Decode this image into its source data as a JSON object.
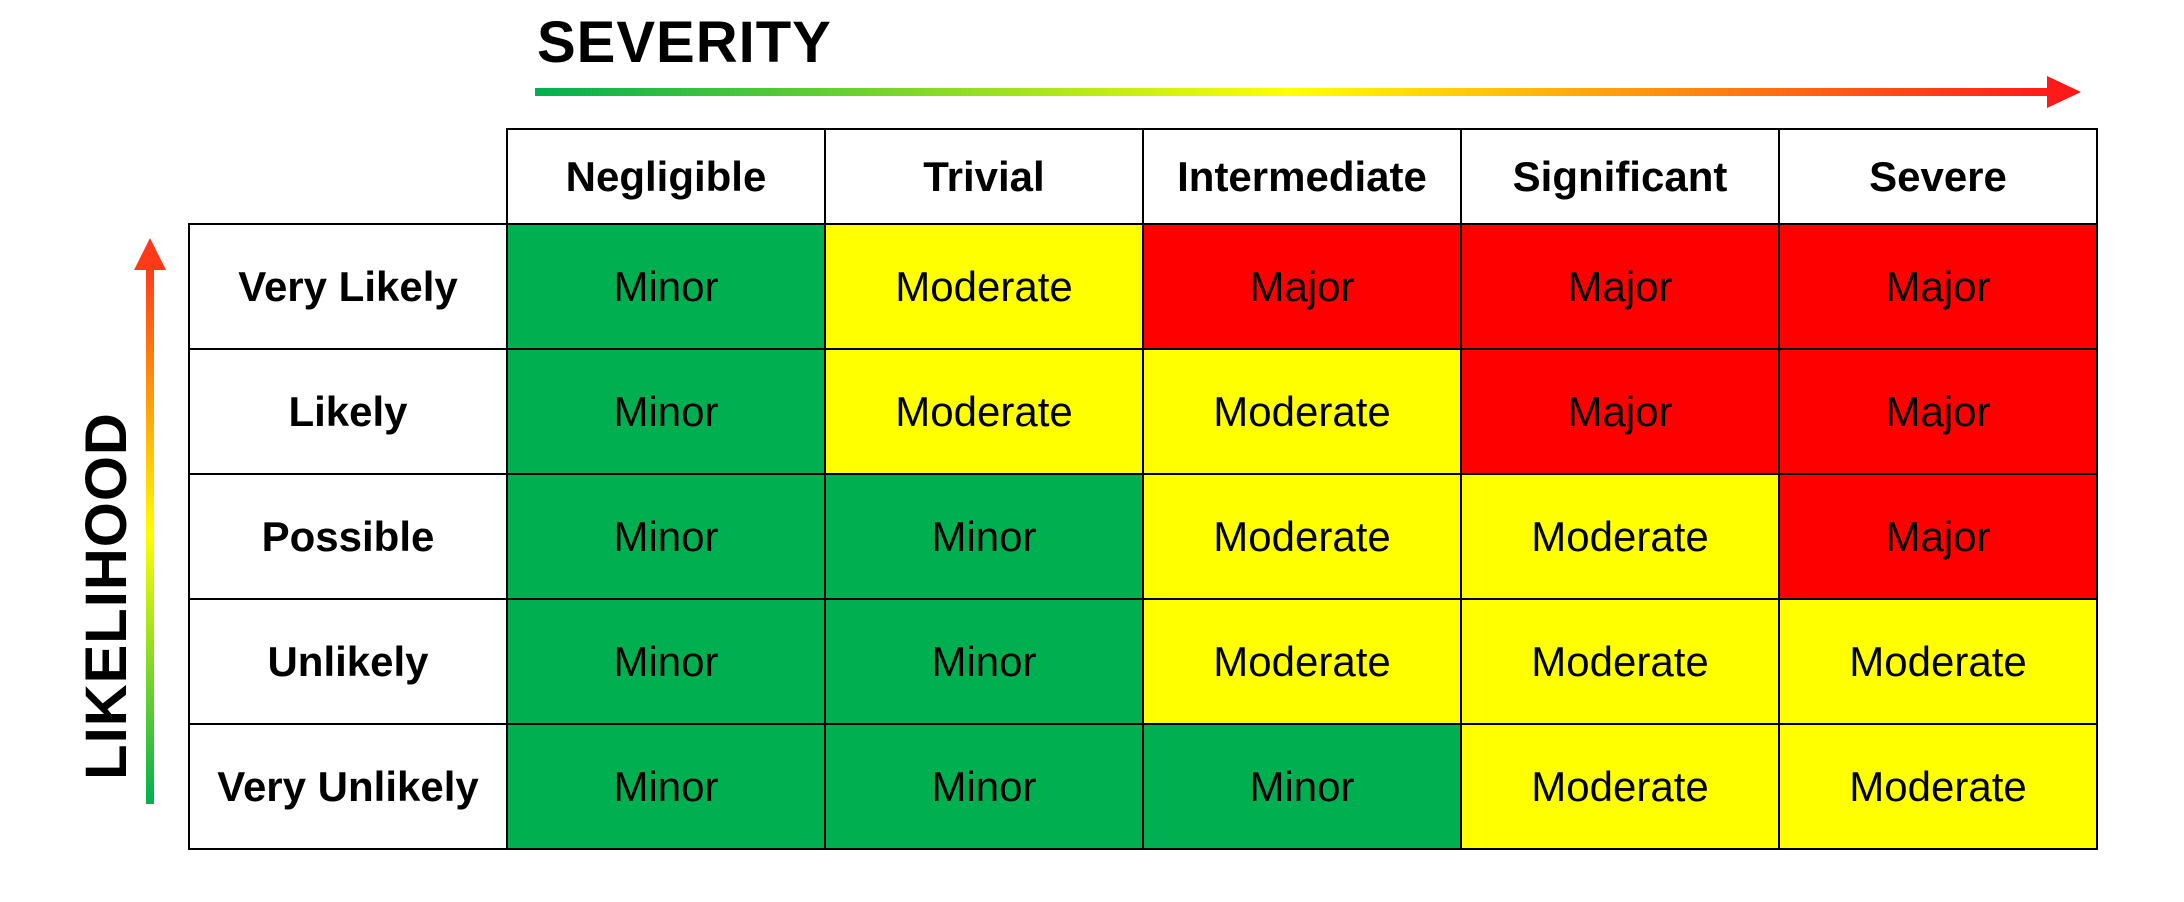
{
  "severity": {
    "title": "SEVERITY",
    "levels": [
      "Negligible",
      "Trivial",
      "Intermediate",
      "Significant",
      "Severe"
    ]
  },
  "likelihood": {
    "title": "LIKELIHOOD",
    "levels": [
      "Very Likely",
      "Likely",
      "Possible",
      "Unlikely",
      "Very Unlikely"
    ]
  },
  "matrix": [
    [
      "Minor",
      "Moderate",
      "Major",
      "Major",
      "Major"
    ],
    [
      "Minor",
      "Moderate",
      "Moderate",
      "Major",
      "Major"
    ],
    [
      "Minor",
      "Minor",
      "Moderate",
      "Moderate",
      "Major"
    ],
    [
      "Minor",
      "Minor",
      "Moderate",
      "Moderate",
      "Moderate"
    ],
    [
      "Minor",
      "Minor",
      "Minor",
      "Moderate",
      "Moderate"
    ]
  ],
  "colors": {
    "Minor": "#00b050",
    "Moderate": "#ffff00",
    "Major": "#ff0000",
    "arrow_start": "#00b050",
    "arrow_mid": "#ffff00",
    "arrow_end": "#ff1a1a"
  }
}
